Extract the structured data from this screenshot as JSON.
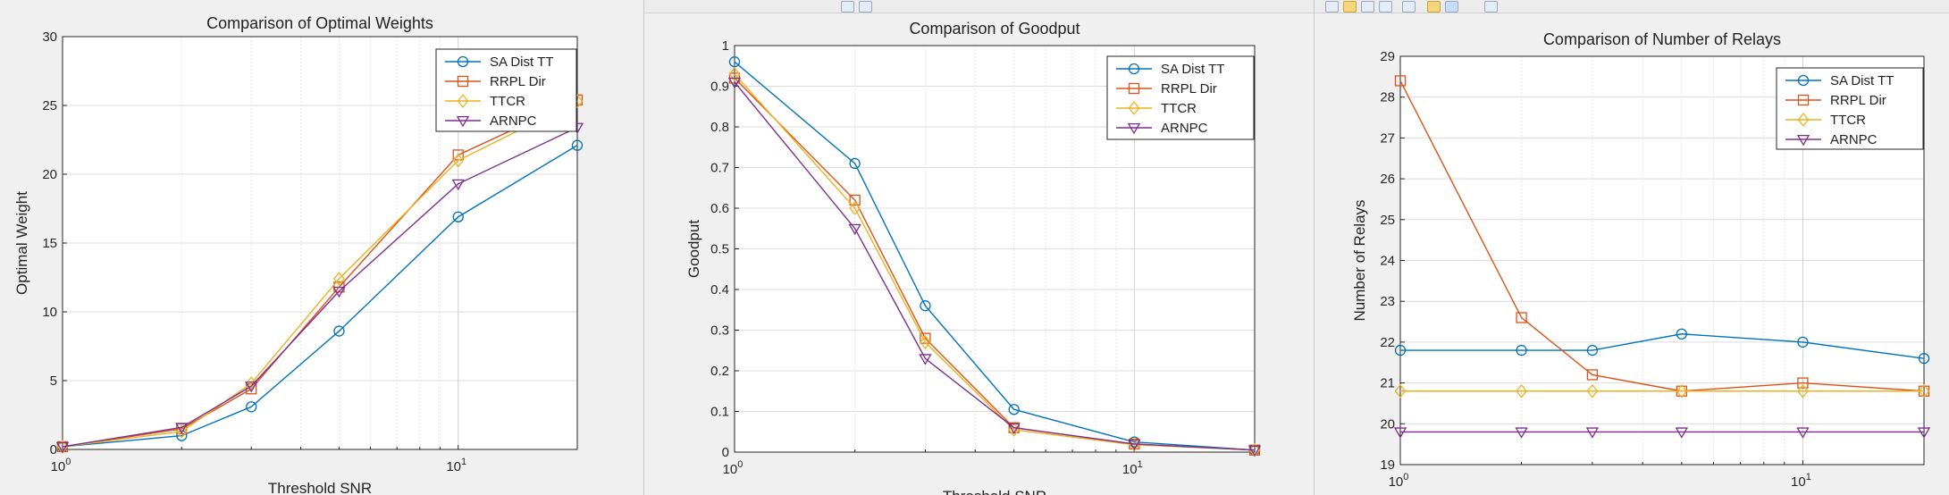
{
  "colors": {
    "series": [
      "#0072BD",
      "#D95319",
      "#EDB120",
      "#7E2F8E"
    ],
    "grid": "#dcdcdc",
    "axes_bg": "#ffffff",
    "figure_bg": "#f0f0f0"
  },
  "chart_data": [
    {
      "type": "line",
      "title": "Comparison of Optimal Weights",
      "xlabel": "Threshold SNR",
      "ylabel": "Optimal Weight",
      "xscale": "log",
      "xlim": [
        1,
        20
      ],
      "ylim": [
        0,
        30
      ],
      "yticks": [
        "0",
        "5",
        "10",
        "15",
        "20",
        "25",
        "30"
      ],
      "xticks": [
        {
          "base": "10",
          "exp": "0",
          "value": 1
        },
        {
          "base": "10",
          "exp": "1",
          "value": 10
        }
      ],
      "grid": true,
      "legend_position": "top-right",
      "x": [
        1,
        2,
        3,
        5,
        10,
        20
      ],
      "series": [
        {
          "name": "SA Dist TT",
          "marker": "circle",
          "values": [
            0.2,
            1.0,
            3.1,
            8.6,
            16.9,
            22.1
          ]
        },
        {
          "name": "RRPL Dir",
          "marker": "square",
          "values": [
            0.2,
            1.5,
            4.4,
            11.8,
            21.4,
            25.4
          ]
        },
        {
          "name": "TTCR",
          "marker": "diamond",
          "values": [
            0.2,
            1.3,
            4.8,
            12.4,
            21.0,
            25.3
          ]
        },
        {
          "name": "ARNPC",
          "marker": "triangle-down",
          "values": [
            0.2,
            1.6,
            4.6,
            11.5,
            19.3,
            23.4
          ]
        }
      ]
    },
    {
      "type": "line",
      "title": "Comparison of Goodput",
      "xlabel": "Threshold SNR",
      "ylabel": "Goodput",
      "xscale": "log",
      "xlim": [
        1,
        20
      ],
      "ylim": [
        0,
        1
      ],
      "yticks": [
        "0",
        "0.1",
        "0.2",
        "0.3",
        "0.4",
        "0.5",
        "0.6",
        "0.7",
        "0.8",
        "0.9",
        "1"
      ],
      "xticks": [
        {
          "base": "10",
          "exp": "0",
          "value": 1
        },
        {
          "base": "10",
          "exp": "1",
          "value": 10
        }
      ],
      "grid": true,
      "legend_position": "top-right",
      "x": [
        1,
        2,
        3,
        5,
        10,
        20
      ],
      "series": [
        {
          "name": "SA Dist TT",
          "marker": "circle",
          "values": [
            0.96,
            0.71,
            0.36,
            0.105,
            0.025,
            0.005
          ]
        },
        {
          "name": "RRPL Dir",
          "marker": "square",
          "values": [
            0.92,
            0.62,
            0.28,
            0.06,
            0.02,
            0.005
          ]
        },
        {
          "name": "TTCR",
          "marker": "diamond",
          "values": [
            0.93,
            0.6,
            0.27,
            0.055,
            0.018,
            0.005
          ]
        },
        {
          "name": "ARNPC",
          "marker": "triangle-down",
          "values": [
            0.91,
            0.55,
            0.23,
            0.06,
            0.02,
            0.005
          ]
        }
      ]
    },
    {
      "type": "line",
      "title": "Comparison of Number of Relays",
      "xlabel": "",
      "ylabel": "Number of Relays",
      "xscale": "log",
      "xlim": [
        1,
        20
      ],
      "ylim": [
        19,
        29
      ],
      "yticks": [
        "19",
        "20",
        "21",
        "22",
        "23",
        "24",
        "25",
        "26",
        "27",
        "28",
        "29"
      ],
      "xticks": [
        {
          "base": "10",
          "exp": "0",
          "value": 1
        },
        {
          "base": "10",
          "exp": "1",
          "value": 10
        }
      ],
      "grid": true,
      "legend_position": "top-right",
      "x": [
        1,
        2,
        3,
        5,
        10,
        20
      ],
      "series": [
        {
          "name": "SA Dist TT",
          "marker": "circle",
          "values": [
            21.8,
            21.8,
            21.8,
            22.2,
            22.0,
            21.6
          ]
        },
        {
          "name": "RRPL Dir",
          "marker": "square",
          "values": [
            28.4,
            22.6,
            21.2,
            20.8,
            21.0,
            20.8
          ]
        },
        {
          "name": "TTCR",
          "marker": "diamond",
          "values": [
            20.8,
            20.8,
            20.8,
            20.8,
            20.8,
            20.8
          ]
        },
        {
          "name": "ARNPC",
          "marker": "triangle-down",
          "values": [
            19.8,
            19.8,
            19.8,
            19.8,
            19.8,
            19.8
          ]
        }
      ]
    }
  ]
}
